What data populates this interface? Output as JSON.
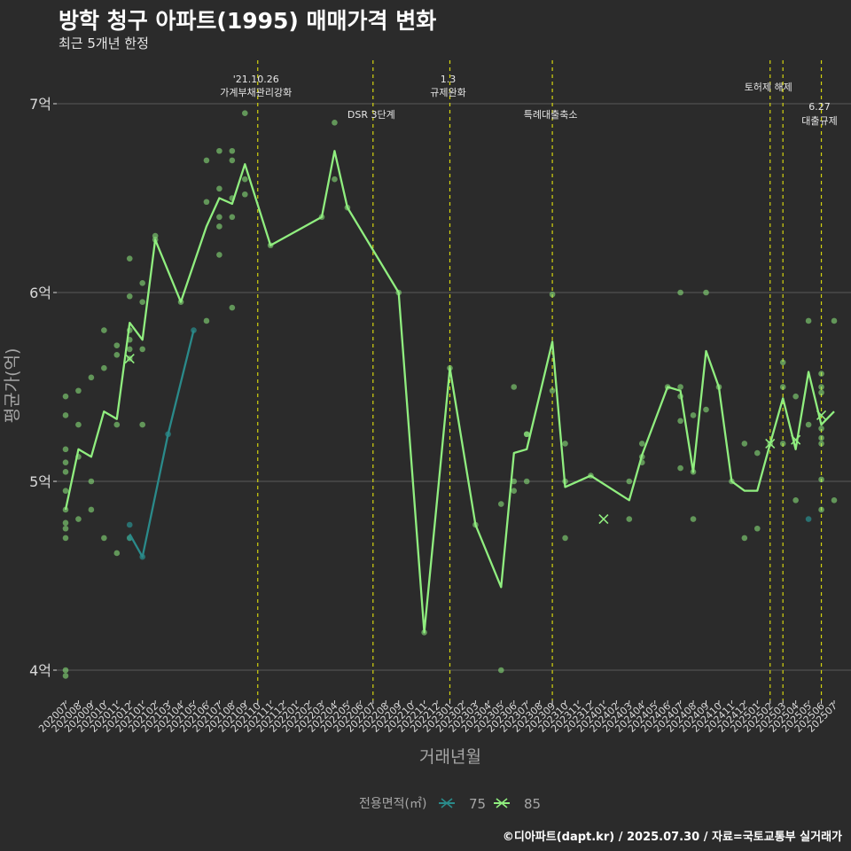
{
  "chart_data": {
    "type": "line",
    "title": "방학 청구 아파트(1995) 매매가격 변화",
    "subtitle": "최근 5개년 한정",
    "caption": "©디아파트(dapt.kr) / 2025.07.30 / 자료=국토교통부 실거래가",
    "xlabel": "거래년월",
    "ylabel": "평균가(억)",
    "legend_title": "전용면적(㎡)",
    "legend_position": "bottom",
    "ylim": [
      3.85,
      7.25
    ],
    "y_ticks": [
      {
        "value": 4,
        "label": "4억"
      },
      {
        "value": 5,
        "label": "5억"
      },
      {
        "value": 6,
        "label": "6억"
      },
      {
        "value": 7,
        "label": "7억"
      }
    ],
    "categories": [
      "202007",
      "202008",
      "202009",
      "202010",
      "202011",
      "202012",
      "202101",
      "202102",
      "202103",
      "202104",
      "202105",
      "202106",
      "202107",
      "202108",
      "202109",
      "202110",
      "202111",
      "202112",
      "202201",
      "202202",
      "202203",
      "202204",
      "202205",
      "202206",
      "202207",
      "202208",
      "202209",
      "202210",
      "202211",
      "202212",
      "202301",
      "202302",
      "202303",
      "202304",
      "202305",
      "202306",
      "202307",
      "202308",
      "202309",
      "202310",
      "202311",
      "202312",
      "202401",
      "202402",
      "202403",
      "202404",
      "202405",
      "202406",
      "202407",
      "202408",
      "202409",
      "202410",
      "202411",
      "202412",
      "202501",
      "202502",
      "202503",
      "202504",
      "202505",
      "202506",
      "202507"
    ],
    "series": [
      {
        "name": "75",
        "color": "#2a8a8a",
        "x": [
          "202012",
          "202101",
          "202103",
          "202105"
        ],
        "y": [
          4.72,
          4.6,
          5.25,
          5.8
        ]
      },
      {
        "name": "85",
        "color": "#90ee7f",
        "x": [
          "202007",
          "202008",
          "202009",
          "202010",
          "202011",
          "202012",
          "202101",
          "202102",
          "202104",
          "202106",
          "202107",
          "202108",
          "202109",
          "202111",
          "202203",
          "202204",
          "202205",
          "202209",
          "202211",
          "202301",
          "202303",
          "202305",
          "202306",
          "202307",
          "202309",
          "202310",
          "202312",
          "202403",
          "202404",
          "202406",
          "202407",
          "202408",
          "202409",
          "202410",
          "202411",
          "202412",
          "202501",
          "202502",
          "202503",
          "202504",
          "202505",
          "202506",
          "202507"
        ],
        "y": [
          4.85,
          5.17,
          5.13,
          5.37,
          5.33,
          5.84,
          5.75,
          6.28,
          5.95,
          6.35,
          6.5,
          6.47,
          6.68,
          6.25,
          6.4,
          6.75,
          6.45,
          6.0,
          4.2,
          5.6,
          4.77,
          4.44,
          5.15,
          5.17,
          5.74,
          4.97,
          5.03,
          4.9,
          5.14,
          5.5,
          5.48,
          5.05,
          5.69,
          5.5,
          5.0,
          4.95,
          4.95,
          5.2,
          5.44,
          5.17,
          5.58,
          5.3,
          5.37
        ]
      }
    ],
    "points_85": [
      {
        "x": "202007",
        "y": 4.0
      },
      {
        "x": "202007",
        "y": 3.97
      },
      {
        "x": "202007",
        "y": 4.7
      },
      {
        "x": "202007",
        "y": 4.75
      },
      {
        "x": "202007",
        "y": 4.78
      },
      {
        "x": "202007",
        "y": 4.85
      },
      {
        "x": "202007",
        "y": 4.95
      },
      {
        "x": "202007",
        "y": 5.05
      },
      {
        "x": "202007",
        "y": 5.1
      },
      {
        "x": "202007",
        "y": 5.17
      },
      {
        "x": "202007",
        "y": 5.35
      },
      {
        "x": "202007",
        "y": 5.45
      },
      {
        "x": "202008",
        "y": 4.8
      },
      {
        "x": "202008",
        "y": 5.13
      },
      {
        "x": "202008",
        "y": 5.3
      },
      {
        "x": "202008",
        "y": 5.48
      },
      {
        "x": "202009",
        "y": 4.85
      },
      {
        "x": "202009",
        "y": 5.0
      },
      {
        "x": "202009",
        "y": 5.55
      },
      {
        "x": "202010",
        "y": 4.7
      },
      {
        "x": "202010",
        "y": 5.6
      },
      {
        "x": "202010",
        "y": 5.8
      },
      {
        "x": "202011",
        "y": 4.62
      },
      {
        "x": "202011",
        "y": 5.3
      },
      {
        "x": "202011",
        "y": 5.67
      },
      {
        "x": "202011",
        "y": 5.72
      },
      {
        "x": "202012",
        "y": 4.7
      },
      {
        "x": "202012",
        "y": 5.65
      },
      {
        "x": "202012",
        "y": 5.7
      },
      {
        "x": "202012",
        "y": 5.75
      },
      {
        "x": "202012",
        "y": 5.8
      },
      {
        "x": "202012",
        "y": 5.98
      },
      {
        "x": "202012",
        "y": 6.18
      },
      {
        "x": "202101",
        "y": 5.3
      },
      {
        "x": "202101",
        "y": 5.7
      },
      {
        "x": "202101",
        "y": 5.95
      },
      {
        "x": "202101",
        "y": 6.05
      },
      {
        "x": "202102",
        "y": 6.28
      },
      {
        "x": "202102",
        "y": 6.3
      },
      {
        "x": "202104",
        "y": 5.95
      },
      {
        "x": "202106",
        "y": 5.85
      },
      {
        "x": "202106",
        "y": 6.48
      },
      {
        "x": "202106",
        "y": 6.7
      },
      {
        "x": "202107",
        "y": 6.2
      },
      {
        "x": "202107",
        "y": 6.35
      },
      {
        "x": "202107",
        "y": 6.4
      },
      {
        "x": "202107",
        "y": 6.55
      },
      {
        "x": "202107",
        "y": 6.75
      },
      {
        "x": "202108",
        "y": 5.92
      },
      {
        "x": "202108",
        "y": 6.4
      },
      {
        "x": "202108",
        "y": 6.5
      },
      {
        "x": "202108",
        "y": 6.7
      },
      {
        "x": "202108",
        "y": 6.75
      },
      {
        "x": "202109",
        "y": 6.52
      },
      {
        "x": "202109",
        "y": 6.6
      },
      {
        "x": "202109",
        "y": 6.95
      },
      {
        "x": "202111",
        "y": 6.25
      },
      {
        "x": "202203",
        "y": 6.4
      },
      {
        "x": "202204",
        "y": 6.6
      },
      {
        "x": "202204",
        "y": 6.9
      },
      {
        "x": "202205",
        "y": 6.45
      },
      {
        "x": "202209",
        "y": 6.0
      },
      {
        "x": "202211",
        "y": 4.2
      },
      {
        "x": "202301",
        "y": 5.6
      },
      {
        "x": "202303",
        "y": 4.77
      },
      {
        "x": "202305",
        "y": 4.0
      },
      {
        "x": "202305",
        "y": 4.88
      },
      {
        "x": "202306",
        "y": 4.95
      },
      {
        "x": "202306",
        "y": 5.0
      },
      {
        "x": "202306",
        "y": 5.5
      },
      {
        "x": "202307",
        "y": 5.0
      },
      {
        "x": "202307",
        "y": 5.25
      },
      {
        "x": "202307",
        "y": 5.25
      },
      {
        "x": "202309",
        "y": 5.48
      },
      {
        "x": "202309",
        "y": 5.99
      },
      {
        "x": "202310",
        "y": 4.7
      },
      {
        "x": "202310",
        "y": 5.0
      },
      {
        "x": "202310",
        "y": 5.2
      },
      {
        "x": "202312",
        "y": 5.03
      },
      {
        "x": "202403",
        "y": 4.8
      },
      {
        "x": "202403",
        "y": 5.0
      },
      {
        "x": "202404",
        "y": 5.1
      },
      {
        "x": "202404",
        "y": 5.13
      },
      {
        "x": "202404",
        "y": 5.2
      },
      {
        "x": "202406",
        "y": 5.5
      },
      {
        "x": "202407",
        "y": 5.07
      },
      {
        "x": "202407",
        "y": 5.32
      },
      {
        "x": "202407",
        "y": 5.45
      },
      {
        "x": "202407",
        "y": 5.5
      },
      {
        "x": "202407",
        "y": 6.0
      },
      {
        "x": "202408",
        "y": 4.8
      },
      {
        "x": "202408",
        "y": 5.05
      },
      {
        "x": "202408",
        "y": 5.35
      },
      {
        "x": "202409",
        "y": 5.38
      },
      {
        "x": "202409",
        "y": 6.0
      },
      {
        "x": "202410",
        "y": 5.5
      },
      {
        "x": "202411",
        "y": 5.0
      },
      {
        "x": "202412",
        "y": 4.7
      },
      {
        "x": "202412",
        "y": 5.2
      },
      {
        "x": "202501",
        "y": 4.75
      },
      {
        "x": "202501",
        "y": 5.15
      },
      {
        "x": "202502",
        "y": 5.2
      },
      {
        "x": "202503",
        "y": 5.2
      },
      {
        "x": "202503",
        "y": 5.5
      },
      {
        "x": "202503",
        "y": 5.63
      },
      {
        "x": "202504",
        "y": 4.9
      },
      {
        "x": "202504",
        "y": 5.45
      },
      {
        "x": "202505",
        "y": 5.3
      },
      {
        "x": "202505",
        "y": 5.85
      },
      {
        "x": "202506",
        "y": 4.85
      },
      {
        "x": "202506",
        "y": 5.01
      },
      {
        "x": "202506",
        "y": 5.2
      },
      {
        "x": "202506",
        "y": 5.23
      },
      {
        "x": "202506",
        "y": 5.28
      },
      {
        "x": "202506",
        "y": 5.47
      },
      {
        "x": "202506",
        "y": 5.5
      },
      {
        "x": "202506",
        "y": 5.57
      },
      {
        "x": "202507",
        "y": 4.9
      },
      {
        "x": "202507",
        "y": 5.85
      }
    ],
    "points_75": [
      {
        "x": "202012",
        "y": 4.77
      },
      {
        "x": "202012",
        "y": 4.7
      },
      {
        "x": "202101",
        "y": 4.6
      },
      {
        "x": "202103",
        "y": 5.25
      },
      {
        "x": "202105",
        "y": 5.8
      },
      {
        "x": "202505",
        "y": 4.8
      }
    ],
    "cross_markers": [
      {
        "x": "202012",
        "y": 5.65,
        "series": "85"
      },
      {
        "x": "202401",
        "y": 4.8,
        "series": "85"
      },
      {
        "x": "202502",
        "y": 5.2,
        "series": "85"
      },
      {
        "x": "202504",
        "y": 5.22,
        "series": "85"
      },
      {
        "x": "202506",
        "y": 5.35,
        "series": "85"
      }
    ],
    "events": [
      {
        "x": "202110",
        "lines": [
          "'21.10.26",
          "가계부채관리강화"
        ],
        "level": 1
      },
      {
        "x": "202207",
        "lines": [
          "DSR 3단계"
        ],
        "level": 3
      },
      {
        "x": "202301",
        "lines": [
          "1.3",
          "규제완화"
        ],
        "level": 1
      },
      {
        "x": "202309",
        "lines": [
          "특례대출축소"
        ],
        "level": 3
      },
      {
        "x": "202502",
        "lines": [
          "토허제 해제"
        ],
        "level": 2
      },
      {
        "x": "202503",
        "lines": [],
        "level": 0
      },
      {
        "x": "202506",
        "lines": [
          "6.27",
          "대출규제"
        ],
        "level": 4
      }
    ],
    "colors": {
      "background": "#2b2b2b",
      "grid": "#5a5a5a",
      "event_line": "#d4d40f",
      "axis_text": "#d9d9d9"
    }
  }
}
